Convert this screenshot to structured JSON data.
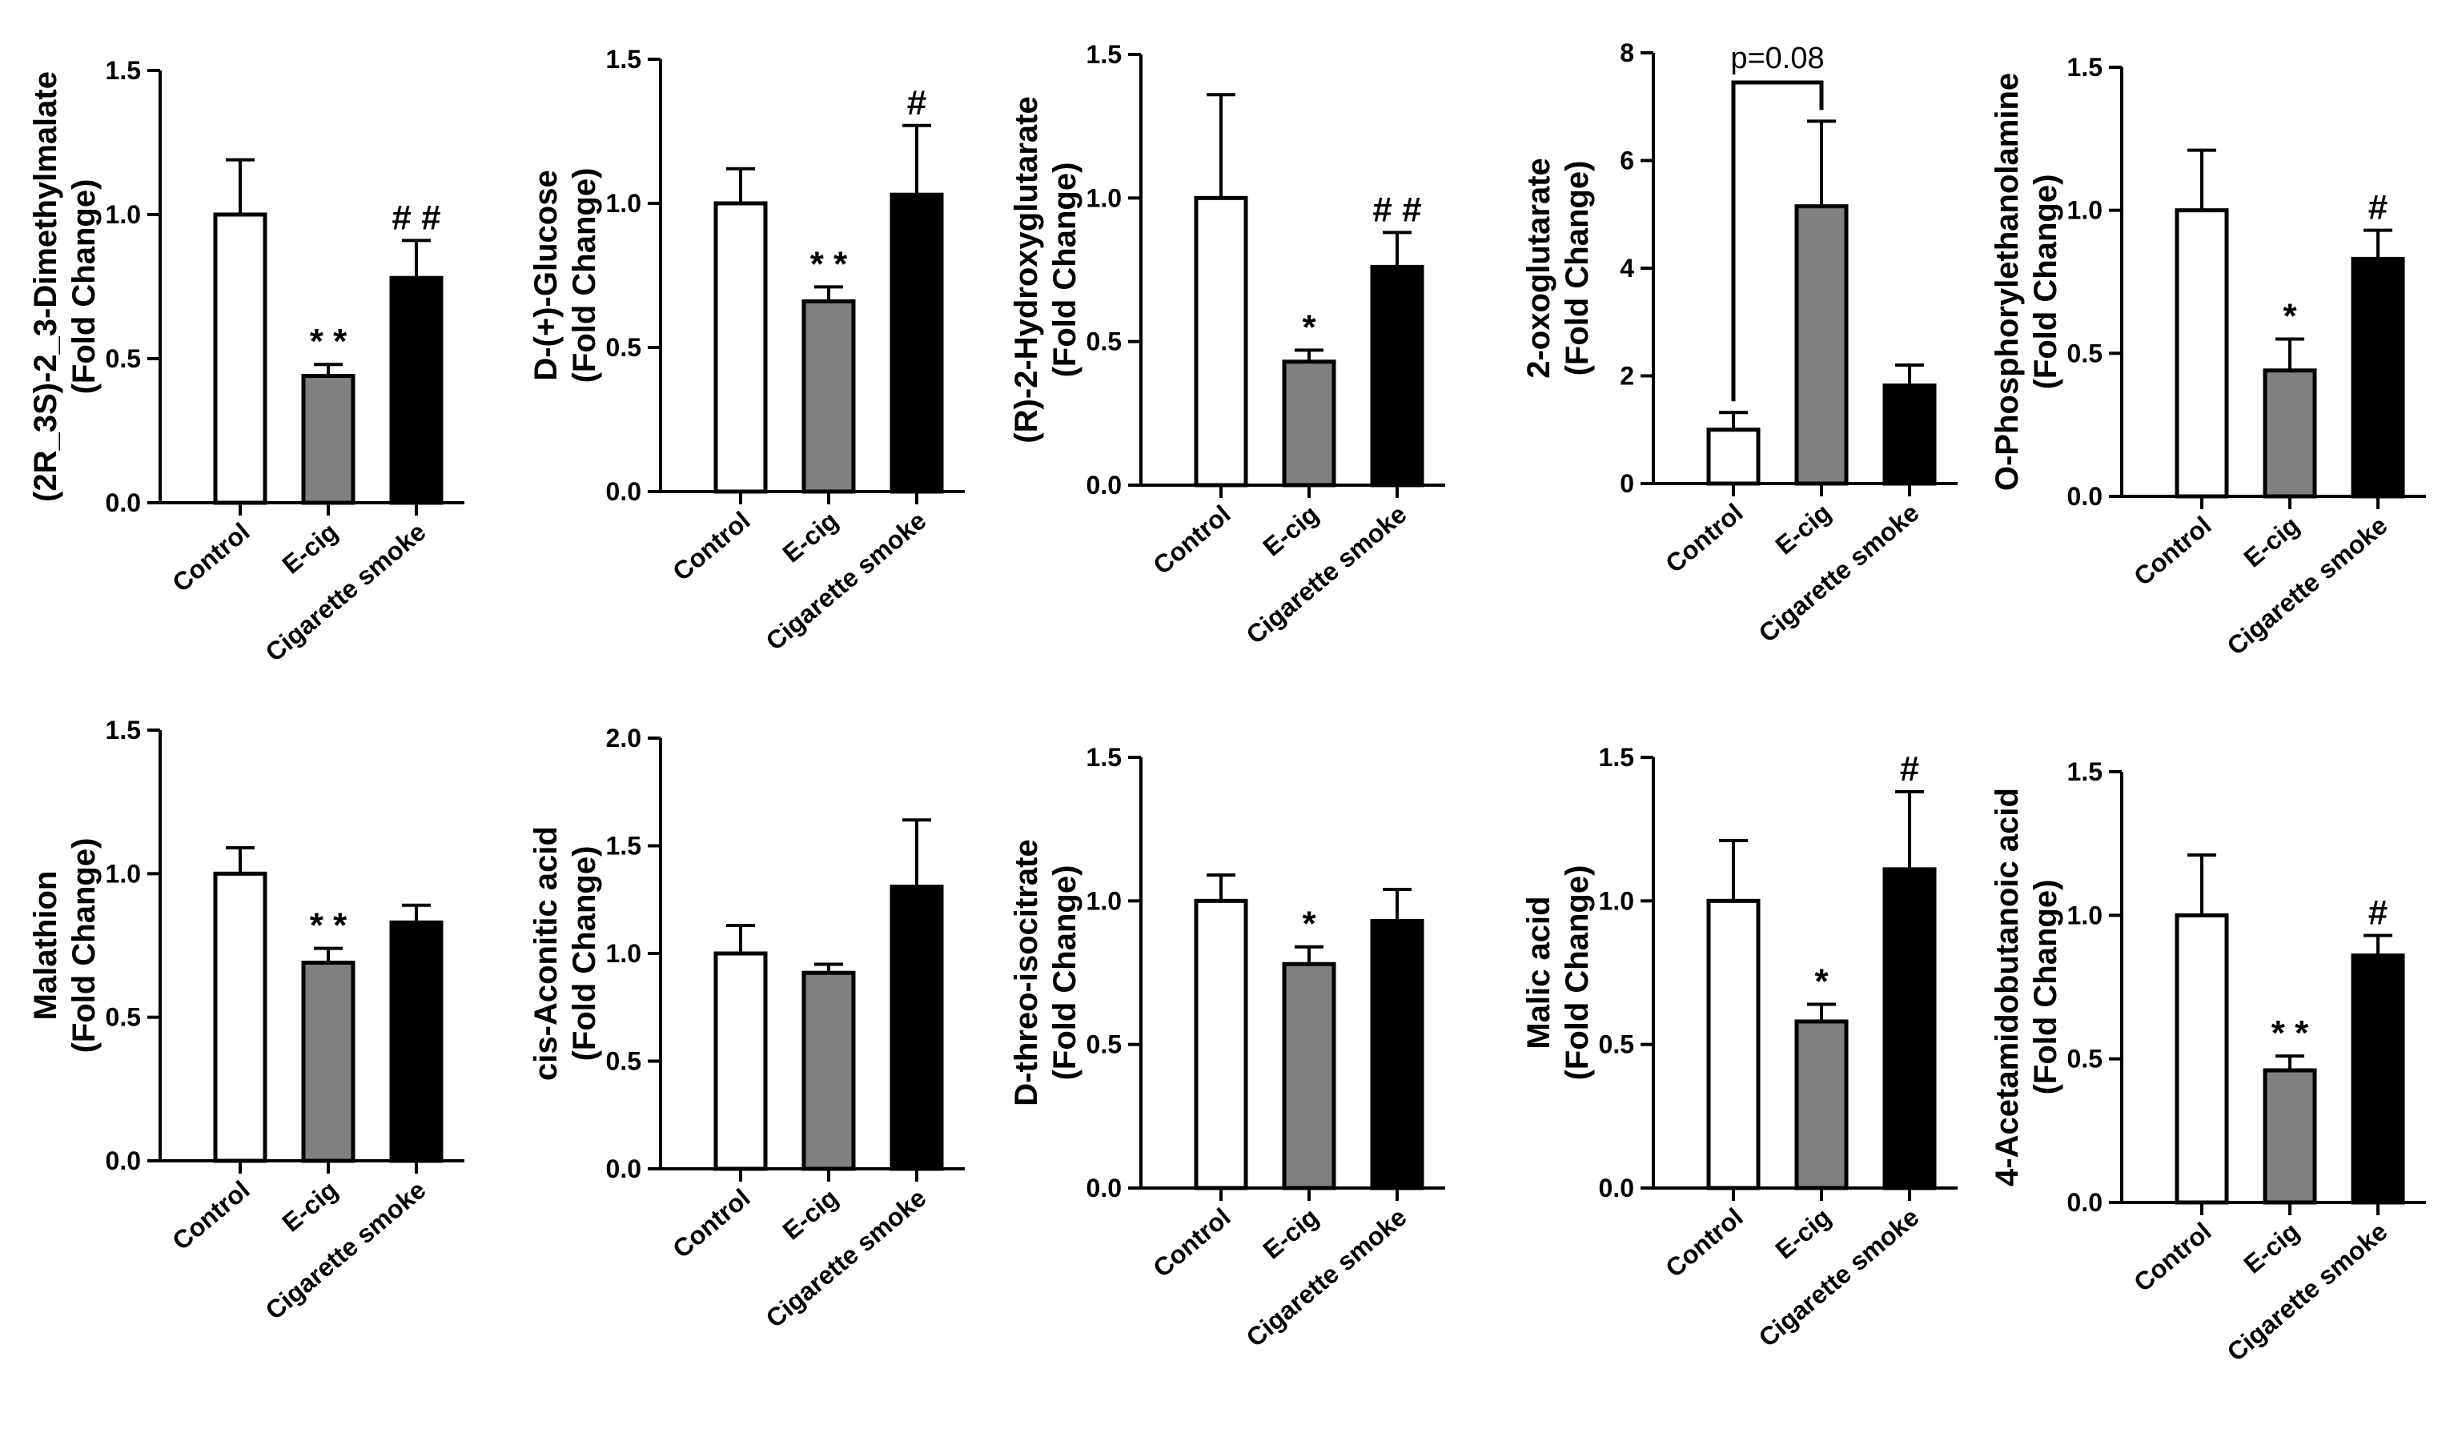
{
  "chart_data": [
    {
      "type": "bar",
      "ylabel_line1": "(2R_3S)-2_3-Dimethylmalate",
      "ylabel_line2": "(Fold Change)",
      "categories": [
        "Control",
        "E-cig",
        "Cigarette smoke"
      ],
      "values": [
        1.0,
        0.44,
        0.78
      ],
      "errors": [
        0.19,
        0.04,
        0.13
      ],
      "annotations": [
        "",
        "**",
        "##"
      ],
      "ylim": [
        0,
        1.5
      ],
      "yticks": [
        "0.0",
        "0.5",
        "1.0",
        "1.5"
      ],
      "colors": [
        "#ffffff",
        "#808080",
        "#000000"
      ]
    },
    {
      "type": "bar",
      "ylabel_line1": "D-(+)-Glucose",
      "ylabel_line2": "(Fold Change)",
      "categories": [
        "Control",
        "E-cig",
        "Cigarette smoke"
      ],
      "values": [
        1.0,
        0.66,
        1.03
      ],
      "errors": [
        0.12,
        0.05,
        0.24
      ],
      "annotations": [
        "",
        "**",
        "#"
      ],
      "ylim": [
        0,
        1.5
      ],
      "yticks": [
        "0.0",
        "0.5",
        "1.0",
        "1.5"
      ],
      "colors": [
        "#ffffff",
        "#808080",
        "#000000"
      ]
    },
    {
      "type": "bar",
      "ylabel_line1": "(R)-2-Hydroxyglutarate",
      "ylabel_line2": "(Fold Change)",
      "categories": [
        "Control",
        "E-cig",
        "Cigarette smoke"
      ],
      "values": [
        1.0,
        0.43,
        0.76
      ],
      "errors": [
        0.36,
        0.04,
        0.12
      ],
      "annotations": [
        "",
        "*",
        "##"
      ],
      "ylim": [
        0,
        1.5
      ],
      "yticks": [
        "0.0",
        "0.5",
        "1.0",
        "1.5"
      ],
      "colors": [
        "#ffffff",
        "#808080",
        "#000000"
      ]
    },
    {
      "type": "bar",
      "ylabel_line1": "2-oxoglutarate",
      "ylabel_line2": "(Fold Change)",
      "categories": [
        "Control",
        "E-cig",
        "Cigarette smoke"
      ],
      "values": [
        1.0,
        5.15,
        1.82
      ],
      "errors": [
        0.32,
        1.58,
        0.38
      ],
      "annotations": [
        "",
        "",
        ""
      ],
      "bracket": {
        "from": 0,
        "to": 1,
        "label": "p=0.08",
        "level": 7.45
      },
      "ylim": [
        0,
        8
      ],
      "yticks": [
        "0",
        "2",
        "4",
        "6",
        "8"
      ],
      "colors": [
        "#ffffff",
        "#808080",
        "#000000"
      ]
    },
    {
      "type": "bar",
      "ylabel_line1": "O-Phosphorylethanolamine",
      "ylabel_line2": "(Fold Change)",
      "categories": [
        "Control",
        "E-cig",
        "Cigarette smoke"
      ],
      "values": [
        1.0,
        0.44,
        0.83
      ],
      "errors": [
        0.21,
        0.11,
        0.1
      ],
      "annotations": [
        "",
        "*",
        "#"
      ],
      "ylim": [
        0,
        1.5
      ],
      "yticks": [
        "0.0",
        "0.5",
        "1.0",
        "1.5"
      ],
      "colors": [
        "#ffffff",
        "#808080",
        "#000000"
      ]
    },
    {
      "type": "bar",
      "ylabel_line1": "Malathion",
      "ylabel_line2": "(Fold Change)",
      "categories": [
        "Control",
        "E-cig",
        "Cigarette smoke"
      ],
      "values": [
        1.0,
        0.69,
        0.83
      ],
      "errors": [
        0.09,
        0.05,
        0.06
      ],
      "annotations": [
        "",
        "**",
        ""
      ],
      "ylim": [
        0,
        1.5
      ],
      "yticks": [
        "0.0",
        "0.5",
        "1.0",
        "1.5"
      ],
      "colors": [
        "#ffffff",
        "#808080",
        "#000000"
      ]
    },
    {
      "type": "bar",
      "ylabel_line1": "cis-Aconitic acid",
      "ylabel_line2": "(Fold Change)",
      "categories": [
        "Control",
        "E-cig",
        "Cigarette smoke"
      ],
      "values": [
        1.0,
        0.91,
        1.31
      ],
      "errors": [
        0.13,
        0.04,
        0.31
      ],
      "annotations": [
        "",
        "",
        ""
      ],
      "ylim": [
        0,
        2.0
      ],
      "yticks": [
        "0.0",
        "0.5",
        "1.0",
        "1.5",
        "2.0"
      ],
      "colors": [
        "#ffffff",
        "#808080",
        "#000000"
      ]
    },
    {
      "type": "bar",
      "ylabel_line1": "D-threo-isocitrate",
      "ylabel_line2": "(Fold Change)",
      "categories": [
        "Control",
        "E-cig",
        "Cigarette smoke"
      ],
      "values": [
        1.0,
        0.78,
        0.93
      ],
      "errors": [
        0.09,
        0.06,
        0.11
      ],
      "annotations": [
        "",
        "*",
        ""
      ],
      "ylim": [
        0,
        1.5
      ],
      "yticks": [
        "0.0",
        "0.5",
        "1.0",
        "1.5"
      ],
      "colors": [
        "#ffffff",
        "#808080",
        "#000000"
      ]
    },
    {
      "type": "bar",
      "ylabel_line1": "Malic acid",
      "ylabel_line2": "(Fold Change)",
      "categories": [
        "Control",
        "E-cig",
        "Cigarette smoke"
      ],
      "values": [
        1.0,
        0.58,
        1.11
      ],
      "errors": [
        0.21,
        0.06,
        0.27
      ],
      "annotations": [
        "",
        "*",
        "#"
      ],
      "ylim": [
        0,
        1.5
      ],
      "yticks": [
        "0.0",
        "0.5",
        "1.0",
        "1.5"
      ],
      "colors": [
        "#ffffff",
        "#808080",
        "#000000"
      ]
    },
    {
      "type": "bar",
      "ylabel_line1": "4-Acetamidobutanoic acid",
      "ylabel_line2": "(Fold Change)",
      "categories": [
        "Control",
        "E-cig",
        "Cigarette smoke"
      ],
      "values": [
        1.0,
        0.46,
        0.86
      ],
      "errors": [
        0.21,
        0.05,
        0.07
      ],
      "annotations": [
        "",
        "**",
        "#"
      ],
      "ylim": [
        0,
        1.5
      ],
      "yticks": [
        "0.0",
        "0.5",
        "1.0",
        "1.5"
      ],
      "colors": [
        "#ffffff",
        "#808080",
        "#000000"
      ]
    }
  ]
}
